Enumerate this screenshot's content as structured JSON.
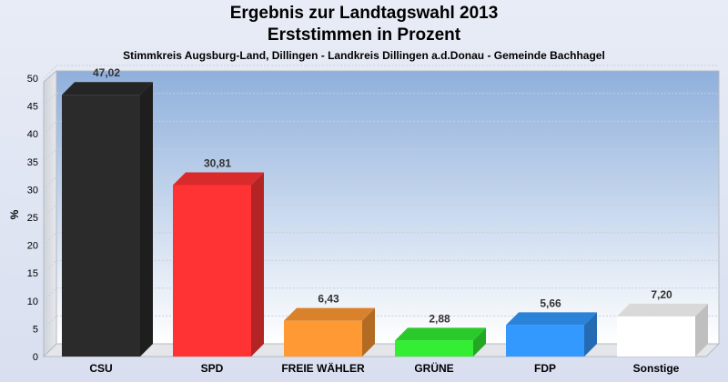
{
  "chart_data": {
    "type": "bar",
    "title": "Ergebnis zur Landtagswahl 2013",
    "subtitle": "Erststimmen in Prozent",
    "caption": "Stimmkreis Augsburg-Land, Dillingen - Landkreis Dillingen a.d.Donau - Gemeinde Bachhagel",
    "ylabel": "%",
    "xlabel": "",
    "ylim": [
      0,
      50
    ],
    "yticks": [
      0,
      5,
      10,
      15,
      20,
      25,
      30,
      35,
      40,
      45,
      50
    ],
    "grid": true,
    "categories": [
      "CSU",
      "SPD",
      "FREIE WÄHLER",
      "GRÜNE",
      "FDP",
      "Sonstige"
    ],
    "values": [
      47.02,
      30.81,
      6.43,
      2.88,
      5.66,
      7.2
    ],
    "value_labels": [
      "47,02",
      "30,81",
      "6,43",
      "2,88",
      "5,66",
      "7,20"
    ],
    "colors": [
      "#2b2b2b",
      "#ff3333",
      "#ff9933",
      "#33ee33",
      "#3399ff",
      "#ffffff"
    ],
    "background_top": "#8fb0dc",
    "background_bottom": "#ffffff"
  }
}
